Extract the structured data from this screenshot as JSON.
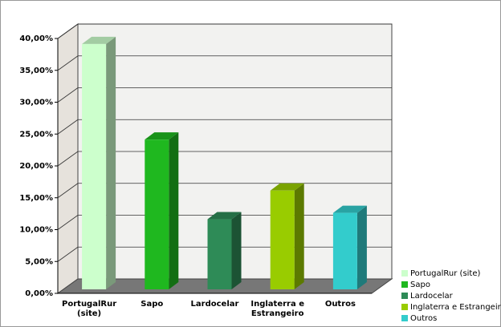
{
  "chart_data": {
    "type": "bar3d",
    "categories": [
      "PortugalRur (site)",
      "Sapo",
      "Lardocelar",
      "Inglaterra e Estrangeiro",
      "Outros"
    ],
    "values": [
      38.5,
      23.5,
      11,
      15.5,
      12
    ],
    "colors": [
      "#ccffcc",
      "#1fb81f",
      "#2e8b57",
      "#99cc00",
      "#33cccc"
    ],
    "ylim": [
      0,
      40
    ],
    "yticks": [
      {
        "value": 0,
        "label": "0,00%"
      },
      {
        "value": 5,
        "label": "5,00%"
      },
      {
        "value": 10,
        "label": "10,00%"
      },
      {
        "value": 15,
        "label": "15,00%"
      },
      {
        "value": 20,
        "label": "20,00%"
      },
      {
        "value": 25,
        "label": "25,00%"
      },
      {
        "value": 30,
        "label": "30,00%"
      },
      {
        "value": 35,
        "label": "35,00%"
      },
      {
        "value": 40,
        "label": "40,00%"
      }
    ],
    "grid": true,
    "legend": "bottom-right"
  }
}
